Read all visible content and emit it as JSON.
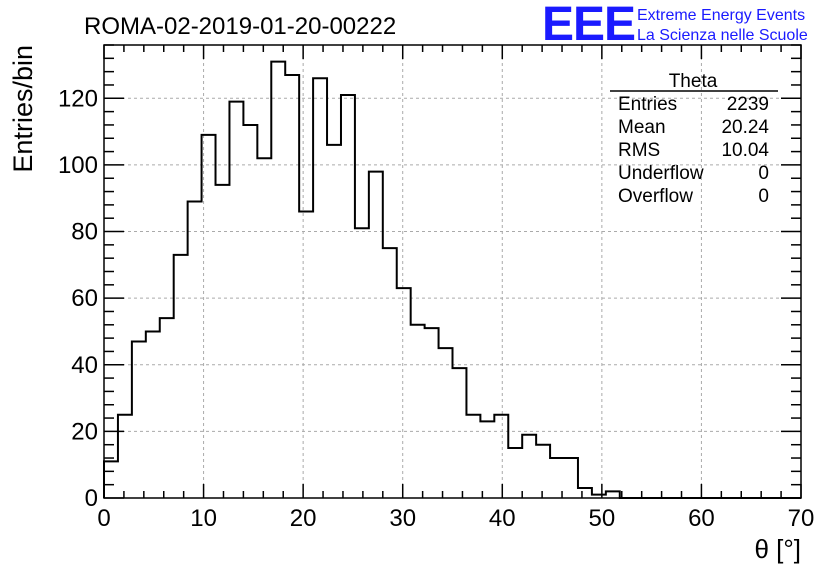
{
  "chart_data": {
    "type": "bar",
    "title": "ROMA-02-2019-01-20-00222",
    "xlabel": "θ [°]",
    "ylabel": "Entries/bin",
    "xlim": [
      0,
      70
    ],
    "ylim": [
      0,
      136
    ],
    "x_ticks": [
      0,
      10,
      20,
      30,
      40,
      50,
      60,
      70
    ],
    "y_ticks": [
      0,
      20,
      40,
      60,
      80,
      100,
      120
    ],
    "grid": true,
    "bin_width": 1.4,
    "bin_edges_start": 0,
    "values": [
      11,
      25,
      47,
      50,
      54,
      73,
      89,
      109,
      94,
      119,
      112,
      102,
      131,
      127,
      86,
      126,
      106,
      121,
      81,
      98,
      75,
      63,
      52,
      51,
      45,
      39,
      25,
      23,
      25,
      15,
      19,
      16,
      12,
      12,
      3,
      1,
      2,
      0,
      0,
      0,
      0,
      0,
      0,
      0,
      0,
      0,
      0,
      0,
      0,
      0
    ],
    "stats_box": {
      "title": "Theta",
      "rows": [
        {
          "label": "Entries",
          "value": "2239"
        },
        {
          "label": "Mean",
          "value": "20.24"
        },
        {
          "label": "RMS",
          "value": "10.04"
        },
        {
          "label": "Underflow",
          "value": "0"
        },
        {
          "label": "Overflow",
          "value": "0"
        }
      ]
    }
  },
  "logo": {
    "text": "EEE",
    "line1": "Extreme Energy Events",
    "line2": "La Scienza nelle Scuole",
    "color": "#1a1aff"
  }
}
